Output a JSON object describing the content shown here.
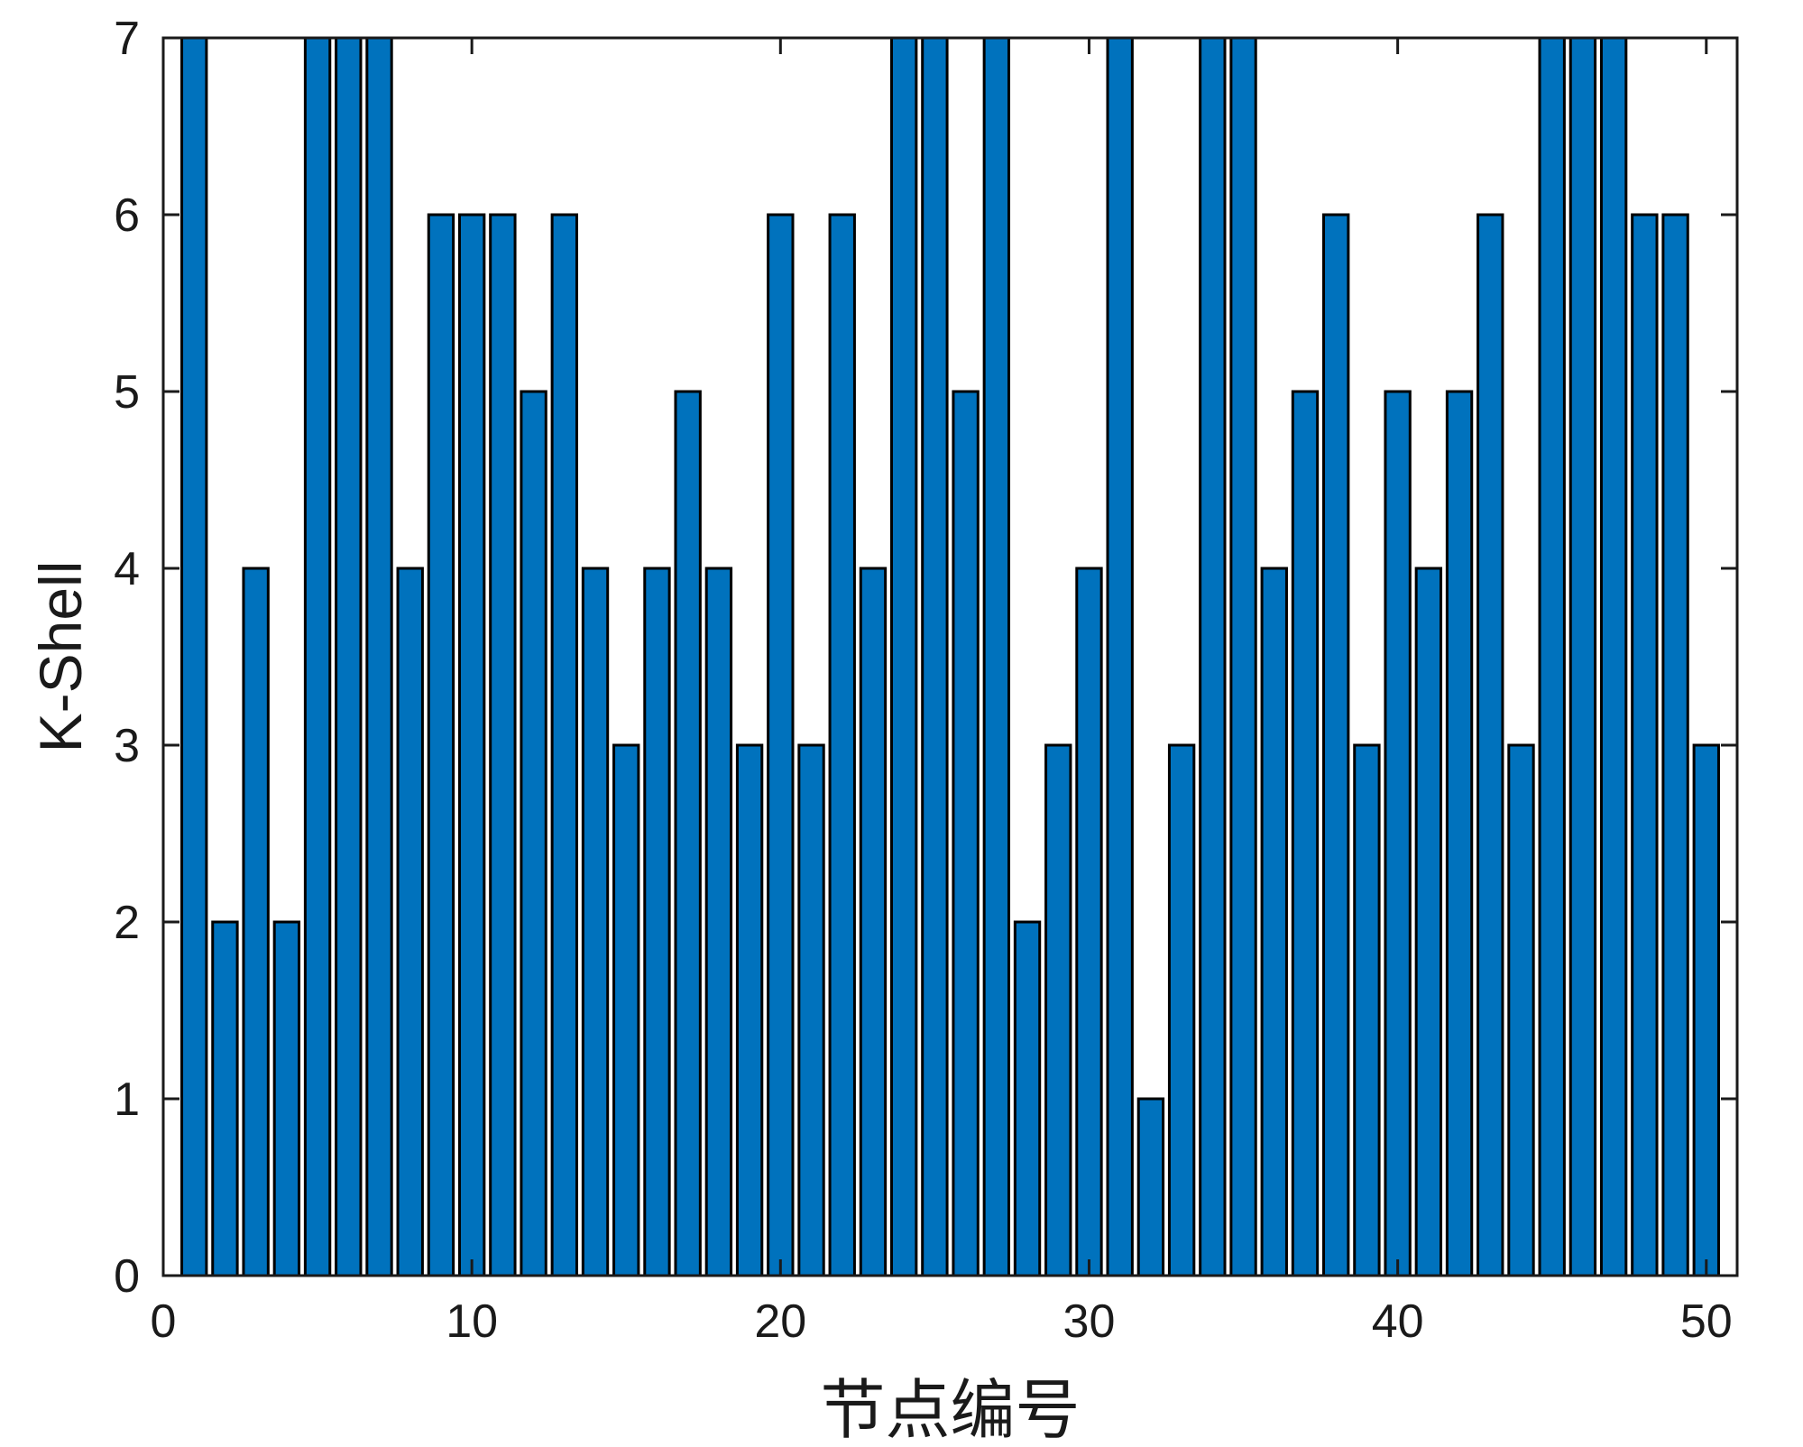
{
  "chart_data": {
    "type": "bar",
    "title": "",
    "xlabel": "节点编号",
    "ylabel": "K-Shell",
    "xlim": [
      0,
      51
    ],
    "ylim": [
      0,
      7
    ],
    "xticks": [
      0,
      10,
      20,
      30,
      40,
      50
    ],
    "yticks": [
      0,
      1,
      2,
      3,
      4,
      5,
      6,
      7
    ],
    "x": [
      1,
      2,
      3,
      4,
      5,
      6,
      7,
      8,
      9,
      10,
      11,
      12,
      13,
      14,
      15,
      16,
      17,
      18,
      19,
      20,
      21,
      22,
      23,
      24,
      25,
      26,
      27,
      28,
      29,
      30,
      31,
      32,
      33,
      34,
      35,
      36,
      37,
      38,
      39,
      40,
      41,
      42,
      43,
      44,
      45,
      46,
      47,
      48,
      49,
      50
    ],
    "values": [
      7,
      2,
      4,
      2,
      7,
      7,
      7,
      4,
      6,
      6,
      6,
      5,
      6,
      4,
      3,
      4,
      5,
      4,
      3,
      6,
      3,
      6,
      4,
      7,
      7,
      5,
      7,
      2,
      3,
      4,
      7,
      1,
      3,
      7,
      7,
      4,
      5,
      6,
      3,
      5,
      4,
      5,
      6,
      3,
      7,
      7,
      7,
      6,
      6,
      3
    ],
    "bar_color": "#0072bd",
    "edge_color": "#000000",
    "grid": false
  }
}
